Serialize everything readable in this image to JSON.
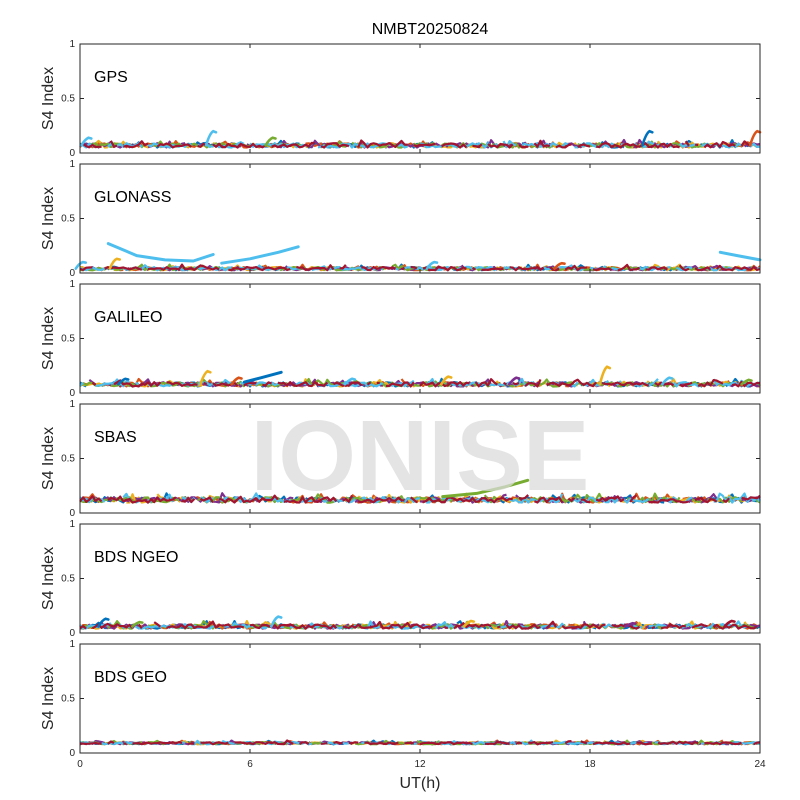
{
  "chart_data": {
    "type": "scatter",
    "title": "NMBT20250824",
    "xlabel": "UT(h)",
    "xlim": [
      0,
      24
    ],
    "xticks": [
      "0",
      "6",
      "12",
      "18",
      "24"
    ],
    "watermark": "IONISE",
    "series_colors": [
      "#0072BD",
      "#D95319",
      "#EDB120",
      "#7E2F8E",
      "#77AC30",
      "#4DBEEE",
      "#A2142F"
    ],
    "panels": [
      {
        "label": "GPS",
        "ylabel": "S4 Index",
        "ylim": [
          0,
          1
        ],
        "yticks": [
          "0",
          "0.5",
          "1"
        ],
        "base": 0.07,
        "noise": 0.02,
        "bumps": [
          {
            "x": 0.3,
            "y": 0.14,
            "color": 5
          },
          {
            "x": 4.7,
            "y": 0.2,
            "color": 5
          },
          {
            "x": 6.8,
            "y": 0.14,
            "color": 4
          },
          {
            "x": 20.1,
            "y": 0.2,
            "color": 0
          },
          {
            "x": 23.9,
            "y": 0.2,
            "color": 1
          }
        ]
      },
      {
        "label": "GLONASS",
        "ylabel": "S4 Index",
        "ylim": [
          0,
          1
        ],
        "yticks": [
          "0",
          "0.5",
          "1"
        ],
        "base": 0.04,
        "noise": 0.015,
        "arcs": [
          {
            "x": [
              1.0,
              2.0,
              3.0,
              4.0,
              4.7
            ],
            "y": [
              0.27,
              0.16,
              0.12,
              0.11,
              0.17
            ],
            "color": 5
          },
          {
            "x": [
              5.0,
              6.0,
              7.0,
              7.7
            ],
            "y": [
              0.09,
              0.13,
              0.19,
              0.24
            ],
            "color": 5
          },
          {
            "x": [
              22.6,
              23.2,
              24.0
            ],
            "y": [
              0.19,
              0.16,
              0.12
            ],
            "color": 5
          }
        ],
        "bumps": [
          {
            "x": 0.1,
            "y": 0.1,
            "color": 5
          },
          {
            "x": 1.3,
            "y": 0.13,
            "color": 2
          },
          {
            "x": 12.5,
            "y": 0.1,
            "color": 5
          },
          {
            "x": 17.0,
            "y": 0.09,
            "color": 1
          }
        ]
      },
      {
        "label": "GALILEO",
        "ylabel": "S4 Index",
        "ylim": [
          0,
          1
        ],
        "yticks": [
          "0",
          "0.5",
          "1"
        ],
        "base": 0.08,
        "noise": 0.02,
        "arcs": [
          {
            "x": [
              5.8,
              6.4,
              7.1
            ],
            "y": [
              0.1,
              0.14,
              0.19
            ],
            "color": 0
          }
        ],
        "bumps": [
          {
            "x": 1.6,
            "y": 0.13,
            "color": 0
          },
          {
            "x": 4.5,
            "y": 0.2,
            "color": 2
          },
          {
            "x": 5.6,
            "y": 0.14,
            "color": 1
          },
          {
            "x": 9.6,
            "y": 0.13,
            "color": 5
          },
          {
            "x": 13.0,
            "y": 0.15,
            "color": 2
          },
          {
            "x": 15.4,
            "y": 0.14,
            "color": 3
          },
          {
            "x": 18.6,
            "y": 0.24,
            "color": 2
          },
          {
            "x": 20.8,
            "y": 0.14,
            "color": 5
          },
          {
            "x": 23.6,
            "y": 0.12,
            "color": 4
          }
        ]
      },
      {
        "label": "SBAS",
        "ylabel": "S4 Index",
        "ylim": [
          0,
          1
        ],
        "yticks": [
          "0",
          "0.5",
          "1"
        ],
        "base": 0.12,
        "noise": 0.025,
        "arcs": [
          {
            "x": [
              12.8,
              14.0,
              15.0,
              15.8
            ],
            "y": [
              0.15,
              0.18,
              0.24,
              0.3
            ],
            "color": 4
          }
        ],
        "bumps": []
      },
      {
        "label": "BDS NGEO",
        "ylabel": "S4 Index",
        "ylim": [
          0,
          1
        ],
        "yticks": [
          "0",
          "0.5",
          "1"
        ],
        "base": 0.06,
        "noise": 0.02,
        "bumps": [
          {
            "x": 0.9,
            "y": 0.13,
            "color": 0
          },
          {
            "x": 2.1,
            "y": 0.1,
            "color": 4
          },
          {
            "x": 7.0,
            "y": 0.15,
            "color": 5
          },
          {
            "x": 13.8,
            "y": 0.11,
            "color": 2
          },
          {
            "x": 19.5,
            "y": 0.09,
            "color": 3
          },
          {
            "x": 23.0,
            "y": 0.11,
            "color": 6
          }
        ]
      },
      {
        "label": "BDS GEO",
        "ylabel": "S4 Index",
        "ylim": [
          0,
          1
        ],
        "yticks": [
          "0",
          "0.5",
          "1"
        ],
        "base": 0.09,
        "noise": 0.01,
        "bumps": []
      }
    ]
  }
}
